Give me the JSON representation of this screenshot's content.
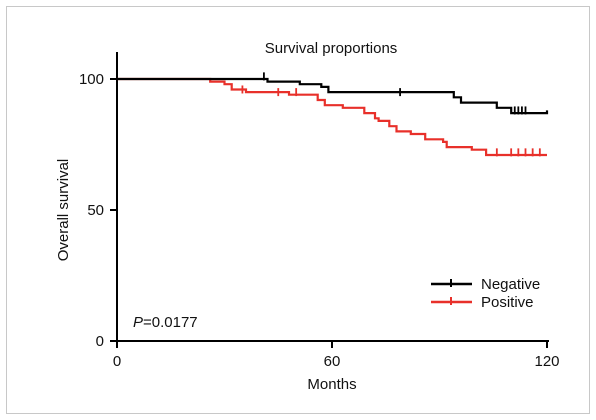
{
  "chart_data": {
    "type": "line",
    "subtype": "kaplan-meier",
    "title": "Survival proportions",
    "xlabel": "Months",
    "ylabel": "Overall survival",
    "xlim": [
      0,
      120
    ],
    "ylim": [
      0,
      100
    ],
    "xticks": [
      "0",
      "60",
      "120"
    ],
    "yticks": [
      "0",
      "50",
      "100"
    ],
    "annotation": {
      "prefix": "P",
      "value": "=0.0177"
    },
    "legend": {
      "position": "bottom-right",
      "entries": [
        "Negative",
        "Positive"
      ]
    },
    "series": [
      {
        "name": "Negative",
        "color": "#000000",
        "points": [
          [
            0,
            100
          ],
          [
            42,
            100
          ],
          [
            42,
            99
          ],
          [
            51,
            99
          ],
          [
            51,
            98
          ],
          [
            57,
            98
          ],
          [
            57,
            97
          ],
          [
            59,
            97
          ],
          [
            59,
            95
          ],
          [
            94,
            95
          ],
          [
            94,
            93
          ],
          [
            96,
            93
          ],
          [
            96,
            91
          ],
          [
            106,
            91
          ],
          [
            106,
            89
          ],
          [
            110,
            89
          ],
          [
            110,
            87
          ],
          [
            120,
            87
          ],
          [
            120,
            88
          ]
        ],
        "censored": [
          [
            41,
            101
          ],
          [
            79,
            95
          ],
          [
            111,
            88
          ],
          [
            112,
            88
          ],
          [
            113,
            88
          ],
          [
            114,
            88
          ]
        ]
      },
      {
        "name": "Positive",
        "color": "#e8302a",
        "points": [
          [
            0,
            100
          ],
          [
            26,
            100
          ],
          [
            26,
            99
          ],
          [
            30,
            99
          ],
          [
            30,
            98
          ],
          [
            32,
            98
          ],
          [
            32,
            96
          ],
          [
            36,
            96
          ],
          [
            36,
            95
          ],
          [
            48,
            95
          ],
          [
            48,
            94
          ],
          [
            56,
            94
          ],
          [
            56,
            92
          ],
          [
            58,
            92
          ],
          [
            58,
            90
          ],
          [
            63,
            90
          ],
          [
            63,
            89
          ],
          [
            69,
            89
          ],
          [
            69,
            87
          ],
          [
            72,
            87
          ],
          [
            72,
            85
          ],
          [
            73,
            85
          ],
          [
            73,
            84
          ],
          [
            76,
            84
          ],
          [
            76,
            82
          ],
          [
            78,
            82
          ],
          [
            78,
            80
          ],
          [
            82,
            80
          ],
          [
            82,
            79
          ],
          [
            86,
            79
          ],
          [
            86,
            77
          ],
          [
            91,
            77
          ],
          [
            91,
            76
          ],
          [
            92,
            76
          ],
          [
            92,
            74
          ],
          [
            99,
            74
          ],
          [
            99,
            73
          ],
          [
            103,
            73
          ],
          [
            103,
            71
          ],
          [
            120,
            71
          ]
        ],
        "censored": [
          [
            35,
            96
          ],
          [
            45,
            95
          ],
          [
            50,
            95
          ],
          [
            106,
            72
          ],
          [
            110,
            72
          ],
          [
            112,
            72
          ],
          [
            114,
            72
          ],
          [
            116,
            72
          ],
          [
            118,
            72
          ]
        ]
      }
    ]
  }
}
